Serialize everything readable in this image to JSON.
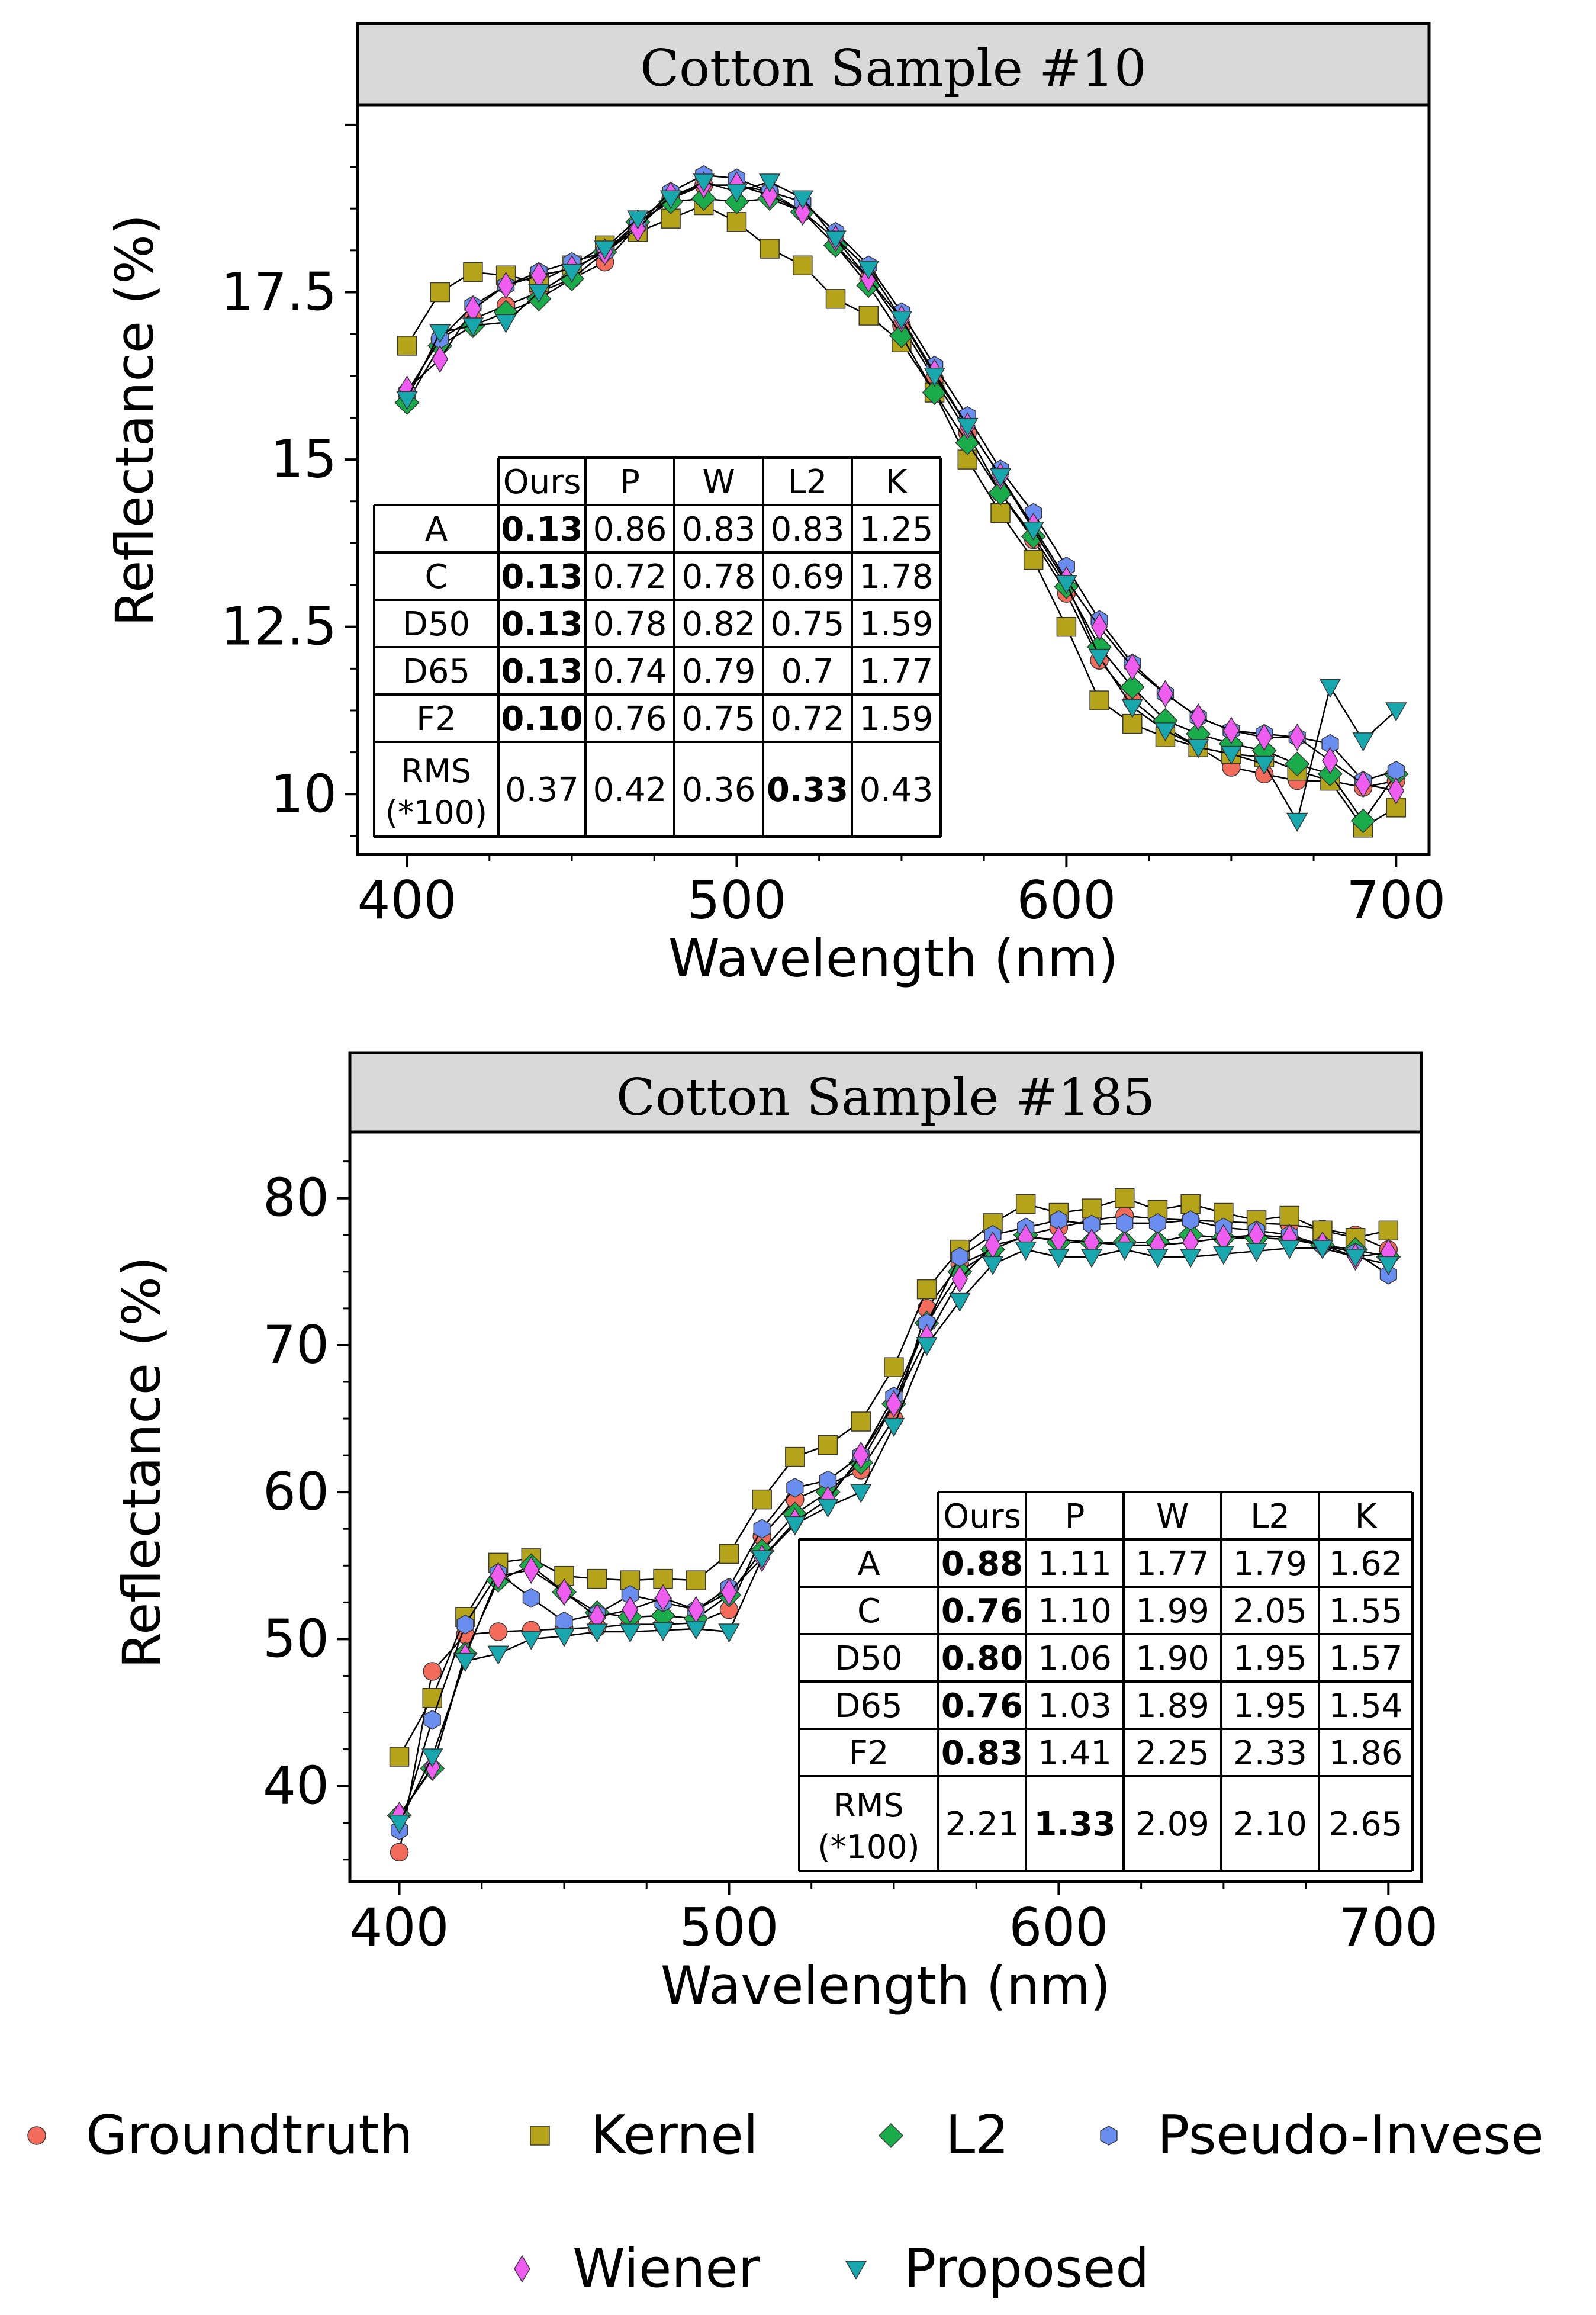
{
  "chart_data": [
    {
      "type": "line",
      "title": "Cotton Sample #10",
      "xlabel": "Wavelength (nm)",
      "ylabel": "Reflectance (%)",
      "xlim": [
        385,
        710
      ],
      "ylim": [
        9.1,
        20.3
      ],
      "xticks": [
        400,
        500,
        600,
        700
      ],
      "yticks": [
        10,
        12.5,
        15,
        17.5
      ],
      "ytick_labels": [
        "10",
        "12.5",
        "15",
        "17.5"
      ],
      "x": [
        400,
        410,
        420,
        430,
        440,
        450,
        460,
        470,
        480,
        490,
        500,
        510,
        520,
        530,
        540,
        550,
        560,
        570,
        580,
        590,
        600,
        610,
        620,
        630,
        640,
        650,
        660,
        670,
        680,
        690,
        700
      ],
      "series": [
        {
          "name": "Groundtruth",
          "values": [
            16.0,
            16.8,
            17.1,
            17.3,
            17.5,
            17.7,
            17.95,
            18.5,
            18.9,
            19.1,
            19.1,
            19.0,
            18.7,
            18.2,
            17.7,
            17.0,
            16.2,
            15.4,
            14.5,
            13.8,
            13.0,
            12.0,
            11.4,
            11.0,
            10.7,
            10.4,
            10.3,
            10.2,
            10.2,
            10.1,
            10.2
          ]
        },
        {
          "name": "Kernel",
          "values": [
            16.7,
            17.5,
            17.8,
            17.75,
            17.65,
            17.9,
            18.2,
            18.4,
            18.6,
            18.8,
            18.55,
            18.15,
            17.9,
            17.4,
            17.15,
            16.75,
            16.0,
            15.0,
            14.2,
            13.5,
            12.5,
            11.4,
            11.05,
            10.85,
            10.7,
            10.6,
            10.55,
            10.35,
            10.2,
            9.5,
            9.8
          ]
        },
        {
          "name": "L2",
          "values": [
            15.85,
            16.7,
            17.0,
            17.2,
            17.4,
            17.7,
            18.1,
            18.55,
            18.85,
            18.9,
            18.85,
            18.9,
            18.7,
            18.2,
            17.6,
            16.85,
            16.0,
            15.25,
            14.5,
            13.85,
            13.1,
            12.2,
            11.6,
            11.1,
            10.9,
            10.75,
            10.65,
            10.45,
            10.3,
            9.6,
            10.3
          ]
        },
        {
          "name": "Pseudo-Invese",
          "values": [
            16.0,
            16.8,
            17.3,
            17.6,
            17.8,
            17.95,
            18.1,
            18.5,
            19.0,
            19.25,
            19.2,
            19.0,
            18.85,
            18.4,
            17.9,
            17.2,
            16.4,
            15.65,
            14.85,
            14.2,
            13.4,
            12.6,
            11.95,
            11.5,
            11.15,
            10.95,
            10.9,
            10.85,
            10.75,
            10.2,
            10.35
          ]
        },
        {
          "name": "Wiener",
          "values": [
            16.05,
            16.5,
            17.25,
            17.6,
            17.75,
            17.85,
            18.1,
            18.45,
            18.95,
            19.1,
            19.1,
            18.95,
            18.7,
            18.3,
            17.7,
            17.1,
            16.3,
            15.5,
            14.75,
            14.0,
            13.2,
            12.5,
            11.9,
            11.5,
            11.15,
            10.95,
            10.85,
            10.85,
            10.5,
            10.15,
            10.05
          ]
        },
        {
          "name": "Proposed",
          "values": [
            15.9,
            16.9,
            17.0,
            17.05,
            17.5,
            17.8,
            18.15,
            18.6,
            18.9,
            19.15,
            19.0,
            19.15,
            18.9,
            18.3,
            17.85,
            17.1,
            16.25,
            15.5,
            14.75,
            13.95,
            13.15,
            12.05,
            11.3,
            10.95,
            10.7,
            10.6,
            10.45,
            9.6,
            11.6,
            10.8,
            11.25
          ]
        }
      ],
      "table": {
        "columns": [
          "",
          "Ours",
          "P",
          "W",
          "L2",
          "K"
        ],
        "rows": [
          {
            "label": "A",
            "values": [
              "0.13",
              "0.86",
              "0.83",
              "0.83",
              "1.25"
            ],
            "bold": 0
          },
          {
            "label": "C",
            "values": [
              "0.13",
              "0.72",
              "0.78",
              "0.69",
              "1.78"
            ],
            "bold": 0
          },
          {
            "label": "D50",
            "values": [
              "0.13",
              "0.78",
              "0.82",
              "0.75",
              "1.59"
            ],
            "bold": 0
          },
          {
            "label": "D65",
            "values": [
              "0.13",
              "0.74",
              "0.79",
              "0.7",
              "1.77"
            ],
            "bold": 0
          },
          {
            "label": "F2",
            "values": [
              "0.10",
              "0.76",
              "0.75",
              "0.72",
              "1.59"
            ],
            "bold": 0
          },
          {
            "label": "RMS",
            "label2": "(*100)",
            "values": [
              "0.37",
              "0.42",
              "0.36",
              "0.33",
              "0.43"
            ],
            "bold": 3
          }
        ]
      }
    },
    {
      "type": "line",
      "title": "Cotton Sample #185",
      "xlabel": "Wavelength (nm)",
      "ylabel": "Reflectance (%)",
      "xlim": [
        385,
        710
      ],
      "ylim": [
        33.5,
        84.5
      ],
      "xticks": [
        400,
        500,
        600,
        700
      ],
      "yticks": [
        40,
        50,
        60,
        70,
        80
      ],
      "ytick_labels": [
        "40",
        "50",
        "60",
        "70",
        "80"
      ],
      "x": [
        400,
        410,
        420,
        430,
        440,
        450,
        460,
        470,
        480,
        490,
        500,
        510,
        520,
        530,
        540,
        550,
        560,
        570,
        580,
        590,
        600,
        610,
        620,
        630,
        640,
        650,
        660,
        670,
        680,
        690,
        700
      ],
      "series": [
        {
          "name": "Groundtruth",
          "values": [
            35.5,
            47.8,
            50.3,
            50.5,
            50.6,
            50.7,
            50.8,
            51.0,
            51.0,
            51.1,
            52.0,
            57.0,
            59.5,
            60.5,
            61.5,
            65.0,
            72.5,
            75.5,
            76.5,
            77.5,
            78.0,
            78.5,
            78.8,
            78.6,
            78.5,
            78.4,
            78.3,
            78.2,
            77.9,
            77.5,
            76.5
          ]
        },
        {
          "name": "Kernel",
          "values": [
            42.0,
            46.0,
            51.5,
            55.2,
            55.5,
            54.3,
            54.1,
            54.0,
            54.1,
            54.0,
            55.8,
            59.5,
            62.4,
            63.2,
            64.8,
            68.5,
            73.8,
            76.5,
            78.3,
            79.6,
            79.0,
            79.3,
            80.0,
            79.2,
            79.6,
            79.0,
            78.5,
            78.8,
            77.8,
            77.3,
            77.8
          ]
        },
        {
          "name": "L2",
          "values": [
            38.0,
            41.2,
            49.0,
            54.0,
            55.0,
            53.2,
            51.8,
            51.5,
            51.6,
            51.4,
            53.0,
            56.0,
            58.5,
            60.0,
            62.0,
            66.0,
            71.5,
            75.0,
            76.5,
            77.5,
            77.0,
            77.0,
            77.0,
            77.0,
            77.5,
            77.3,
            77.3,
            77.2,
            76.8,
            76.5,
            76.0
          ]
        },
        {
          "name": "Pseudo-Invese",
          "values": [
            37.0,
            44.5,
            51.0,
            54.5,
            52.8,
            51.2,
            51.7,
            53.0,
            52.5,
            52.0,
            53.5,
            57.5,
            60.3,
            60.8,
            62.5,
            66.5,
            71.5,
            76.0,
            77.5,
            78.0,
            78.5,
            78.2,
            78.3,
            78.3,
            78.5,
            78.0,
            77.8,
            77.5,
            76.8,
            76.3,
            74.8
          ]
        },
        {
          "name": "Wiener",
          "values": [
            38.0,
            41.3,
            48.8,
            54.3,
            54.7,
            53.2,
            51.5,
            52.0,
            52.8,
            52.0,
            53.2,
            55.5,
            58.0,
            59.5,
            62.5,
            66.0,
            70.5,
            74.5,
            76.8,
            77.3,
            77.2,
            77.0,
            76.8,
            76.8,
            77.0,
            77.3,
            77.5,
            77.3,
            76.8,
            76.0,
            76.3
          ]
        },
        {
          "name": "Proposed",
          "values": [
            37.5,
            42.0,
            48.5,
            49.0,
            50.0,
            50.2,
            50.5,
            50.5,
            50.6,
            50.7,
            50.5,
            55.5,
            57.8,
            59.0,
            60.0,
            64.5,
            70.0,
            73.0,
            75.5,
            76.5,
            76.0,
            76.0,
            76.5,
            76.0,
            76.0,
            76.2,
            76.4,
            76.6,
            76.6,
            76.0,
            75.5
          ]
        }
      ],
      "table": {
        "columns": [
          "",
          "Ours",
          "P",
          "W",
          "L2",
          "K"
        ],
        "rows": [
          {
            "label": "A",
            "values": [
              "0.88",
              "1.11",
              "1.77",
              "1.79",
              "1.62"
            ],
            "bold": 0
          },
          {
            "label": "C",
            "values": [
              "0.76",
              "1.10",
              "1.99",
              "2.05",
              "1.55"
            ],
            "bold": 0
          },
          {
            "label": "D50",
            "values": [
              "0.80",
              "1.06",
              "1.90",
              "1.95",
              "1.57"
            ],
            "bold": 0
          },
          {
            "label": "D65",
            "values": [
              "0.76",
              "1.03",
              "1.89",
              "1.95",
              "1.54"
            ],
            "bold": 0
          },
          {
            "label": "F2",
            "values": [
              "0.83",
              "1.41",
              "2.25",
              "2.33",
              "1.86"
            ],
            "bold": 0
          },
          {
            "label": "RMS",
            "label2": "(*100)",
            "values": [
              "2.21",
              "1.33",
              "2.09",
              "2.10",
              "2.65"
            ],
            "bold": 1
          }
        ]
      }
    }
  ],
  "legend": [
    {
      "name": "Groundtruth",
      "marker": "circle",
      "color": "#f26b5b"
    },
    {
      "name": "Kernel",
      "marker": "square",
      "color": "#b5a319"
    },
    {
      "name": "L2",
      "marker": "diamond",
      "color": "#1aab4b"
    },
    {
      "name": "Pseudo-Invese",
      "marker": "hexagon",
      "color": "#6a8ef0"
    },
    {
      "name": "Wiener",
      "marker": "thin-diamond",
      "color": "#ee5cf0"
    },
    {
      "name": "Proposed",
      "marker": "triangle-down",
      "color": "#19a7ae"
    }
  ]
}
